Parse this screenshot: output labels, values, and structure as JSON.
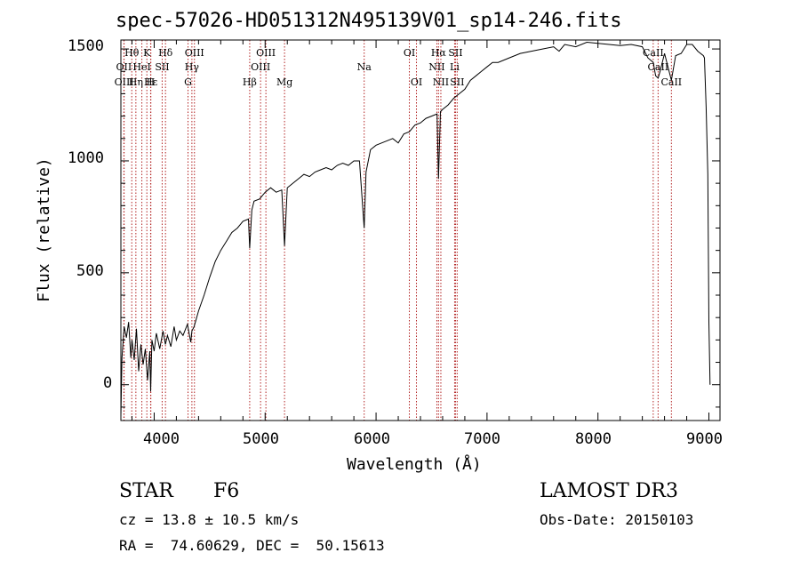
{
  "chart_data": {
    "type": "line",
    "title": "spec-57026-HD051312N495139V01_sp14-246.fits",
    "xlabel": "Wavelength (Å)",
    "ylabel": "Flux (relative)",
    "xlim": [
      3700,
      9100
    ],
    "ylim": [
      -160,
      1540
    ],
    "x_ticks": [
      4000,
      5000,
      6000,
      7000,
      8000,
      9000
    ],
    "x_tick_labels": [
      "4000",
      "5000",
      "6000",
      "7000",
      "8000",
      "9000"
    ],
    "y_ticks": [
      0,
      500,
      1000,
      1500
    ],
    "y_tick_labels": [
      "0",
      "500",
      "1000",
      "1500"
    ],
    "series": [
      {
        "name": "spectrum",
        "x": [
          3700,
          3710,
          3730,
          3750,
          3770,
          3790,
          3800,
          3820,
          3840,
          3860,
          3880,
          3900,
          3920,
          3940,
          3960,
          3968,
          3980,
          4000,
          4020,
          4050,
          4080,
          4101,
          4120,
          4150,
          4180,
          4200,
          4230,
          4260,
          4300,
          4330,
          4340,
          4360,
          4400,
          4450,
          4500,
          4550,
          4600,
          4650,
          4700,
          4750,
          4800,
          4850,
          4861,
          4880,
          4900,
          4950,
          5000,
          5050,
          5100,
          5150,
          5175,
          5200,
          5250,
          5300,
          5350,
          5400,
          5450,
          5500,
          5550,
          5600,
          5650,
          5700,
          5750,
          5800,
          5850,
          5893,
          5910,
          5950,
          6000,
          6050,
          6100,
          6150,
          6200,
          6250,
          6300,
          6350,
          6400,
          6450,
          6500,
          6550,
          6563,
          6580,
          6600,
          6650,
          6700,
          6750,
          6800,
          6850,
          6900,
          6950,
          7000,
          7050,
          7100,
          7200,
          7300,
          7400,
          7500,
          7600,
          7650,
          7700,
          7800,
          7900,
          8000,
          8100,
          8200,
          8300,
          8400,
          8450,
          8498,
          8520,
          8542,
          8560,
          8600,
          8662,
          8700,
          8750,
          8800,
          8850,
          8900,
          8950,
          8960,
          8975,
          8990,
          9000,
          9010
        ],
        "values": [
          -140,
          120,
          260,
          210,
          280,
          120,
          200,
          110,
          250,
          60,
          180,
          90,
          160,
          20,
          150,
          -30,
          200,
          150,
          230,
          160,
          240,
          180,
          220,
          170,
          260,
          200,
          240,
          220,
          270,
          190,
          240,
          260,
          330,
          400,
          480,
          550,
          600,
          640,
          680,
          700,
          730,
          740,
          610,
          780,
          820,
          830,
          860,
          880,
          860,
          870,
          620,
          880,
          900,
          920,
          940,
          930,
          950,
          960,
          970,
          960,
          980,
          990,
          980,
          1000,
          1000,
          700,
          950,
          1050,
          1070,
          1080,
          1090,
          1100,
          1080,
          1120,
          1130,
          1160,
          1170,
          1190,
          1200,
          1210,
          920,
          1220,
          1230,
          1250,
          1280,
          1300,
          1320,
          1360,
          1380,
          1400,
          1420,
          1440,
          1440,
          1460,
          1480,
          1490,
          1500,
          1510,
          1490,
          1520,
          1510,
          1530,
          1525,
          1520,
          1515,
          1520,
          1510,
          1460,
          1440,
          1380,
          1370,
          1400,
          1480,
          1360,
          1470,
          1480,
          1520,
          1520,
          1490,
          1470,
          1460,
          1240,
          940,
          280,
          0
        ]
      }
    ],
    "lines": [
      {
        "label": "Hθ",
        "x": 3798,
        "row": 1
      },
      {
        "label": "OII",
        "x": 3727,
        "row": 2
      },
      {
        "label": "OIII",
        "x": 3729,
        "row": 3
      },
      {
        "label": "Hη",
        "x": 3835,
        "row": 3
      },
      {
        "label": "K",
        "x": 3934,
        "row": 1
      },
      {
        "label": "HeI",
        "x": 3889,
        "row": 2
      },
      {
        "label": "Hε",
        "x": 3970,
        "row": 3
      },
      {
        "label": "SII",
        "x": 4072,
        "row": 2
      },
      {
        "label": "H",
        "x": 3968,
        "row": 3
      },
      {
        "label": "Hδ",
        "x": 4102,
        "row": 1
      },
      {
        "label": "OIII",
        "x": 4363,
        "row": 1
      },
      {
        "label": "Hγ",
        "x": 4340,
        "row": 2
      },
      {
        "label": "G",
        "x": 4305,
        "row": 3
      },
      {
        "label": "Hβ",
        "x": 4861,
        "row": 3
      },
      {
        "label": "OIII",
        "x": 5007,
        "row": 1
      },
      {
        "label": "OIII",
        "x": 4959,
        "row": 2
      },
      {
        "label": "Mg",
        "x": 5175,
        "row": 3
      },
      {
        "label": "Na",
        "x": 5893,
        "row": 2
      },
      {
        "label": "OI",
        "x": 6300,
        "row": 1
      },
      {
        "label": "OI",
        "x": 6364,
        "row": 3
      },
      {
        "label": "Hα",
        "x": 6563,
        "row": 1
      },
      {
        "label": "SII",
        "x": 6716,
        "row": 1
      },
      {
        "label": "NII",
        "x": 6548,
        "row": 2
      },
      {
        "label": "Li",
        "x": 6708,
        "row": 2
      },
      {
        "label": "NII",
        "x": 6584,
        "row": 3
      },
      {
        "label": "SII",
        "x": 6731,
        "row": 3
      },
      {
        "label": "CaII",
        "x": 8498,
        "row": 1
      },
      {
        "label": "CaII",
        "x": 8542,
        "row": 2
      },
      {
        "label": "CaII",
        "x": 8662,
        "row": 3
      }
    ],
    "grid": false,
    "line_color": "#000000",
    "marker_color": "#b22222"
  },
  "info": {
    "class": "STAR",
    "subclass": "F6",
    "survey": "LAMOST DR3",
    "cz": "cz = 13.8 ± 10.5 km/s",
    "obs_date": "Obs-Date: 20150103",
    "radec": "RA =  74.60629, DEC =  50.15613"
  }
}
